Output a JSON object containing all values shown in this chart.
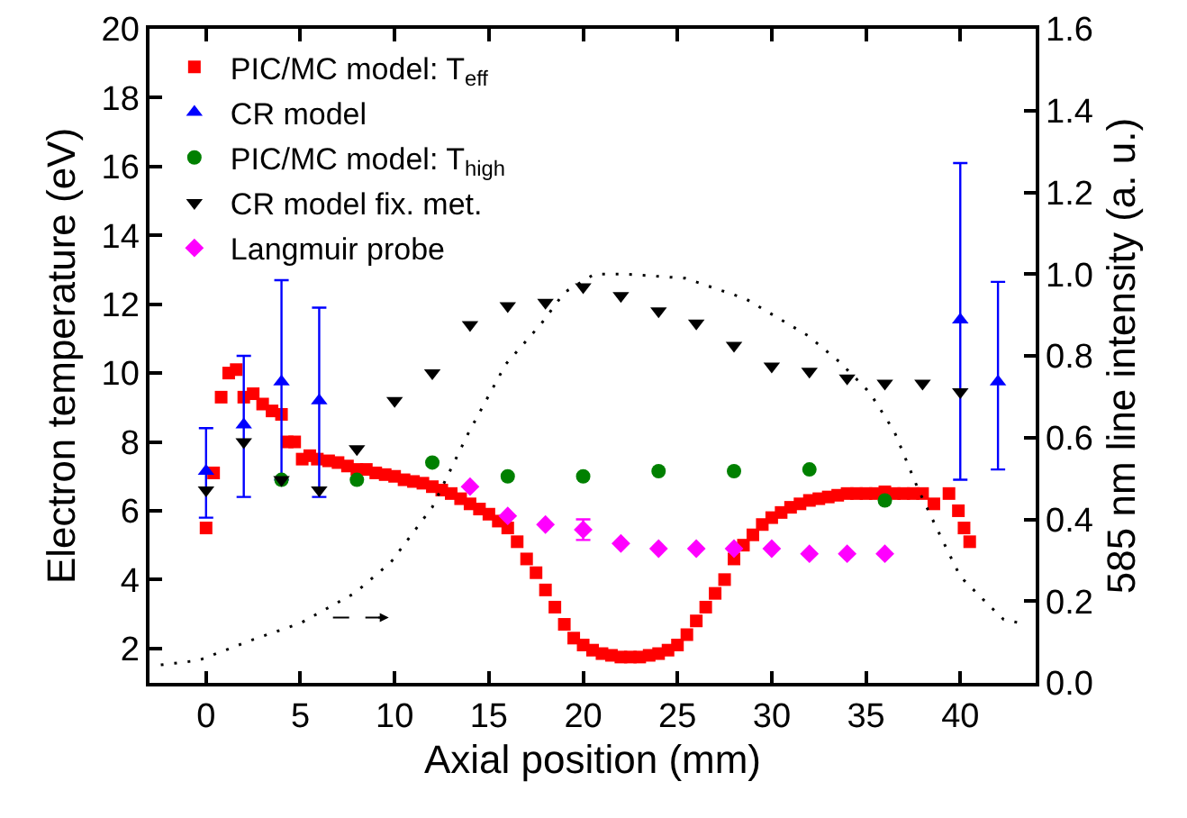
{
  "chart_data": {
    "type": "scatter",
    "xlabel": "Axial position (mm)",
    "ylabel": "Electron temperature (eV)",
    "y2label": "585 nm line intensity (a. u.)",
    "xlim": [
      -3,
      44
    ],
    "xticks": [
      0,
      5,
      10,
      15,
      20,
      25,
      30,
      35,
      40
    ],
    "ylim": [
      1,
      20
    ],
    "yticks": [
      2,
      4,
      6,
      8,
      10,
      12,
      14,
      16,
      18,
      20
    ],
    "y2lim": [
      0,
      1.6
    ],
    "y2ticks": [
      {
        "value": 0,
        "label": "0.0"
      },
      0.2,
      0.4,
      0.6,
      0.8,
      {
        "value": 1,
        "label": "1.0"
      },
      1.2,
      1.4,
      1.6
    ],
    "legend": "top left",
    "grid": false,
    "series": [
      {
        "name": "PIC/MC model: T$_{eff}$",
        "color": "#ff0000",
        "marker": "square",
        "x": [
          0,
          0.4,
          0.8,
          1.2,
          1.6,
          2,
          2.5,
          3,
          3.5,
          4,
          4.3,
          4.7,
          5.1,
          5.5,
          5.9,
          6.5,
          7,
          7.5,
          8,
          8.5,
          9,
          9.5,
          10,
          10.5,
          11,
          11.5,
          12,
          12.5,
          13,
          13.5,
          14,
          14.5,
          15,
          15.5,
          16,
          16.5,
          17,
          17.5,
          18,
          18.5,
          19,
          19.5,
          20,
          20.5,
          21,
          21.5,
          22,
          22.5,
          23,
          23.5,
          24,
          24.5,
          25,
          25.5,
          26,
          26.5,
          27,
          27.5,
          28,
          28.5,
          29,
          29.5,
          30,
          30.5,
          31,
          31.5,
          32,
          32.5,
          33,
          33.5,
          34,
          34.5,
          35,
          35.5,
          36,
          36.5,
          37,
          37.5,
          38,
          38.6,
          39.4,
          39.9,
          40.2,
          40.5
        ],
        "values": [
          5.5,
          7.1,
          9.3,
          10,
          10.1,
          9.3,
          9.4,
          9.1,
          8.9,
          8.8,
          8,
          8,
          7.5,
          7.6,
          7.5,
          7.45,
          7.4,
          7.3,
          7.2,
          7.2,
          7.1,
          7.05,
          7,
          6.9,
          6.85,
          6.8,
          6.7,
          6.6,
          6.5,
          6.35,
          6.2,
          6.05,
          5.9,
          5.7,
          5.5,
          5.1,
          4.6,
          4.2,
          3.7,
          3.2,
          2.7,
          2.3,
          2.1,
          1.95,
          1.85,
          1.8,
          1.75,
          1.75,
          1.75,
          1.8,
          1.85,
          1.95,
          2.1,
          2.4,
          2.8,
          3.2,
          3.6,
          4,
          4.6,
          5,
          5.3,
          5.6,
          5.8,
          5.95,
          6.1,
          6.2,
          6.3,
          6.35,
          6.4,
          6.45,
          6.5,
          6.5,
          6.5,
          6.5,
          6.55,
          6.5,
          6.5,
          6.5,
          6.5,
          6.2,
          6.5,
          6,
          5.5,
          5.1
        ]
      },
      {
        "name": "CR model",
        "color": "#0000ff",
        "marker": "triangle",
        "x": [
          0,
          2,
          4,
          6,
          40,
          42
        ],
        "values": [
          7.15,
          8.5,
          9.75,
          9.2,
          11.55,
          9.75
        ],
        "errors": [
          [
            5.8,
            8.4
          ],
          [
            6.4,
            10.5
          ],
          [
            6.9,
            12.7
          ],
          [
            6.4,
            11.9
          ],
          [
            6.9,
            16.1
          ],
          [
            7.2,
            12.65
          ]
        ]
      },
      {
        "name": "PIC/MC model: T$_{high}$",
        "color": "#008000",
        "marker": "circle",
        "x": [
          4,
          8,
          12,
          16,
          20,
          24,
          28,
          32,
          36
        ],
        "values": [
          6.9,
          6.9,
          7.4,
          7,
          7,
          7.15,
          7.15,
          7.2,
          6.3
        ]
      },
      {
        "name": "CR model fix. met.",
        "color": "#000000",
        "marker": "triangle-down",
        "x": [
          0,
          2,
          4,
          6,
          8,
          10,
          12,
          14,
          16,
          18,
          20,
          22,
          24,
          26,
          28,
          30,
          32,
          34,
          36,
          38,
          40
        ],
        "values": [
          6.6,
          8,
          6.9,
          6.6,
          7.8,
          9.2,
          10,
          11.4,
          11.95,
          12.05,
          12.5,
          12.25,
          11.8,
          11.45,
          10.8,
          10.2,
          10.05,
          9.85,
          9.7,
          9.7,
          9.45
        ]
      },
      {
        "name": "Langmuir probe",
        "color": "#ff00ff",
        "marker": "diamond",
        "x": [
          14,
          16,
          18,
          20,
          22,
          24,
          26,
          28,
          30,
          32,
          34,
          36
        ],
        "values": [
          6.7,
          5.85,
          5.6,
          5.45,
          5.05,
          4.9,
          4.9,
          4.9,
          4.9,
          4.75,
          4.75,
          4.75
        ],
        "errors": [
          null,
          null,
          null,
          0.3,
          null,
          null,
          null,
          null,
          null,
          null,
          null,
          null
        ]
      },
      {
        "type": "line",
        "axis": "y2",
        "color": "#000000",
        "line_style": "dotted",
        "marker": "none",
        "x": [
          -2.4,
          -0.4,
          2.5,
          5,
          7.9,
          9.8,
          12,
          13.9,
          15.9,
          17.8,
          19,
          20.6,
          22.2,
          25.4,
          28.6,
          31.9,
          33.6,
          35.2,
          36.5,
          37.8,
          39.1,
          40,
          41.3,
          42.3,
          43.2
        ],
        "values": [
          0.044,
          0.055,
          0.106,
          0.146,
          0.22,
          0.295,
          0.43,
          0.61,
          0.78,
          0.88,
          0.955,
          1,
          1,
          0.99,
          0.94,
          0.85,
          0.785,
          0.71,
          0.615,
          0.47,
          0.345,
          0.26,
          0.2,
          0.155,
          0.146
        ]
      }
    ]
  }
}
